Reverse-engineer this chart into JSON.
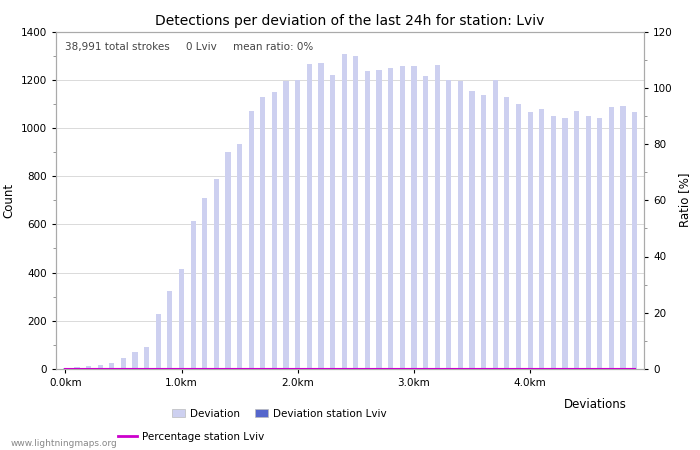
{
  "title": "Detections per deviation of the last 24h for station: Lviv",
  "xlabel": "Deviations",
  "ylabel_left": "Count",
  "ylabel_right": "Ratio [%]",
  "annotation": "38,991 total strokes     0 Lviv     mean ratio: 0%",
  "watermark": "www.lightningmaps.org",
  "x_tick_labels": [
    "0.0km",
    "1.0km",
    "2.0km",
    "3.0km",
    "4.0km"
  ],
  "x_tick_positions": [
    0,
    10,
    20,
    30,
    40
  ],
  "ylim_left": [
    0,
    1400
  ],
  "ylim_right": [
    0,
    120
  ],
  "yticks_left": [
    0,
    200,
    400,
    600,
    800,
    1000,
    1200,
    1400
  ],
  "yticks_right": [
    0,
    20,
    40,
    60,
    80,
    100,
    120
  ],
  "bar_color_light": "#cdd0f0",
  "bar_color_dark": "#5566cc",
  "line_color": "#cc00cc",
  "deviation_values": [
    5,
    8,
    12,
    18,
    25,
    45,
    70,
    90,
    230,
    325,
    415,
    615,
    710,
    790,
    900,
    935,
    1070,
    1130,
    1150,
    1195,
    1200,
    1265,
    1270,
    1220,
    1305,
    1300,
    1235,
    1240,
    1250,
    1255,
    1255,
    1215,
    1260,
    1200,
    1195,
    1155,
    1135,
    1200,
    1130,
    1100,
    1065,
    1080,
    1050,
    1040,
    1070,
    1050,
    1040,
    1085,
    1090,
    1065
  ],
  "station_values": [
    0,
    0,
    0,
    0,
    0,
    0,
    0,
    0,
    0,
    0,
    0,
    0,
    0,
    0,
    0,
    0,
    0,
    0,
    0,
    0,
    0,
    0,
    0,
    0,
    0,
    0,
    0,
    0,
    0,
    0,
    0,
    0,
    0,
    0,
    0,
    0,
    0,
    0,
    0,
    0,
    0,
    0,
    0,
    0,
    0,
    0,
    0,
    0,
    0,
    0
  ],
  "percentage_values": [
    0,
    0,
    0,
    0,
    0,
    0,
    0,
    0,
    0,
    0,
    0,
    0,
    0,
    0,
    0,
    0,
    0,
    0,
    0,
    0,
    0,
    0,
    0,
    0,
    0,
    0,
    0,
    0,
    0,
    0,
    0,
    0,
    0,
    0,
    0,
    0,
    0,
    0,
    0,
    0,
    0,
    0,
    0,
    0,
    0,
    0,
    0,
    0,
    0,
    0
  ],
  "bg_color": "#ffffff",
  "grid_color": "#cccccc",
  "title_fontsize": 10,
  "annotation_fontsize": 7.5,
  "axis_fontsize": 8.5,
  "tick_fontsize": 7.5,
  "bar_width": 0.45
}
